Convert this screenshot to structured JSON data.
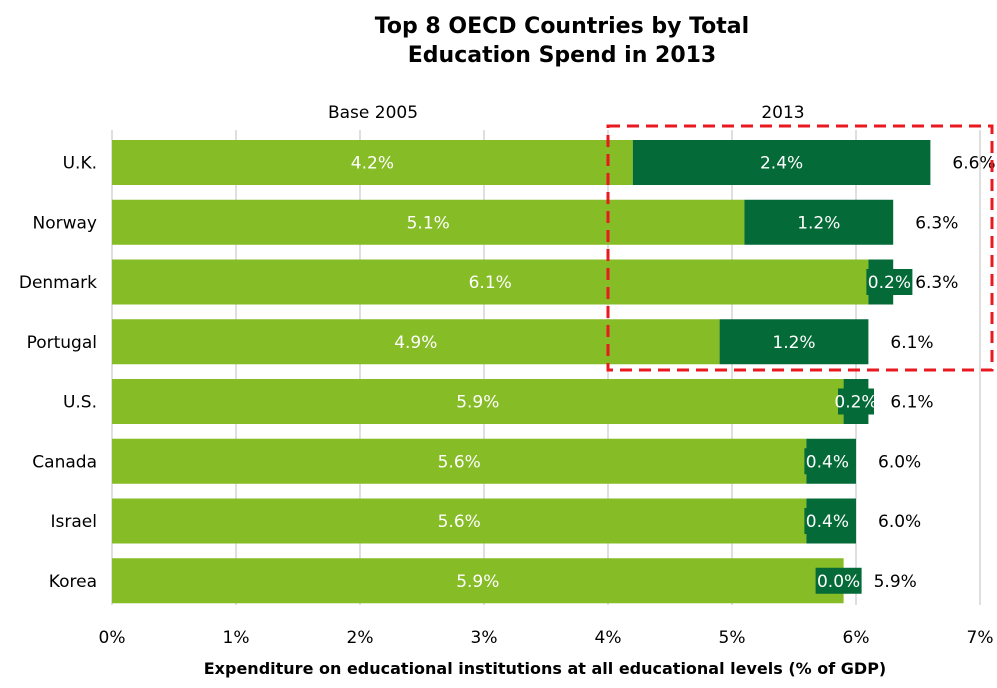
{
  "chart_data": {
    "type": "bar",
    "orientation": "horizontal",
    "stacked": true,
    "title_lines": [
      "Top 8 OECD Countries by Total",
      "Education Spend in 2013"
    ],
    "xlabel": "Expenditure on educational institutions at all educational levels  (% of GDP)",
    "ylabel": "",
    "xlim": [
      0,
      7
    ],
    "x_ticks": [
      "0%",
      "1%",
      "2%",
      "3%",
      "4%",
      "5%",
      "6%",
      "7%"
    ],
    "grid": "vertical",
    "column_headers": {
      "left": "Base 2005",
      "right": "2013"
    },
    "categories": [
      "U.K.",
      "Norway",
      "Denmark",
      "Portugal",
      "U.S.",
      "Canada",
      "Israel",
      "Korea"
    ],
    "series": [
      {
        "values": [
          4.2,
          5.1,
          6.1,
          4.9,
          5.9,
          5.6,
          5.6,
          5.9
        ],
        "labels": [
          "4.2%",
          "5.1%",
          "6.1%",
          "4.9%",
          "5.9%",
          "5.6%",
          "5.6%",
          "5.9%"
        ]
      },
      {
        "values": [
          2.4,
          1.2,
          0.2,
          1.2,
          0.2,
          0.4,
          0.4,
          0.0
        ],
        "labels": [
          "2.4%",
          "1.2%",
          "0.2%",
          "1.2%",
          "0.2%",
          "0.4%",
          "0.4%",
          "0.0%"
        ]
      }
    ],
    "totals": [
      6.6,
      6.3,
      6.3,
      6.1,
      6.1,
      6.0,
      6.0,
      5.9
    ],
    "total_labels": [
      "6.6%",
      "6.3%",
      "6.3%",
      "6.1%",
      "6.1%",
      "6.0%",
      "6.0%",
      "5.9%"
    ],
    "highlight": "dashed red box around U.K., Norway, Denmark, Portugal from 4%",
    "colors": {
      "base": "#86BC25",
      "increase": "#046A38",
      "highlight": "#E8191F",
      "grid": "#BFBFBF"
    }
  }
}
